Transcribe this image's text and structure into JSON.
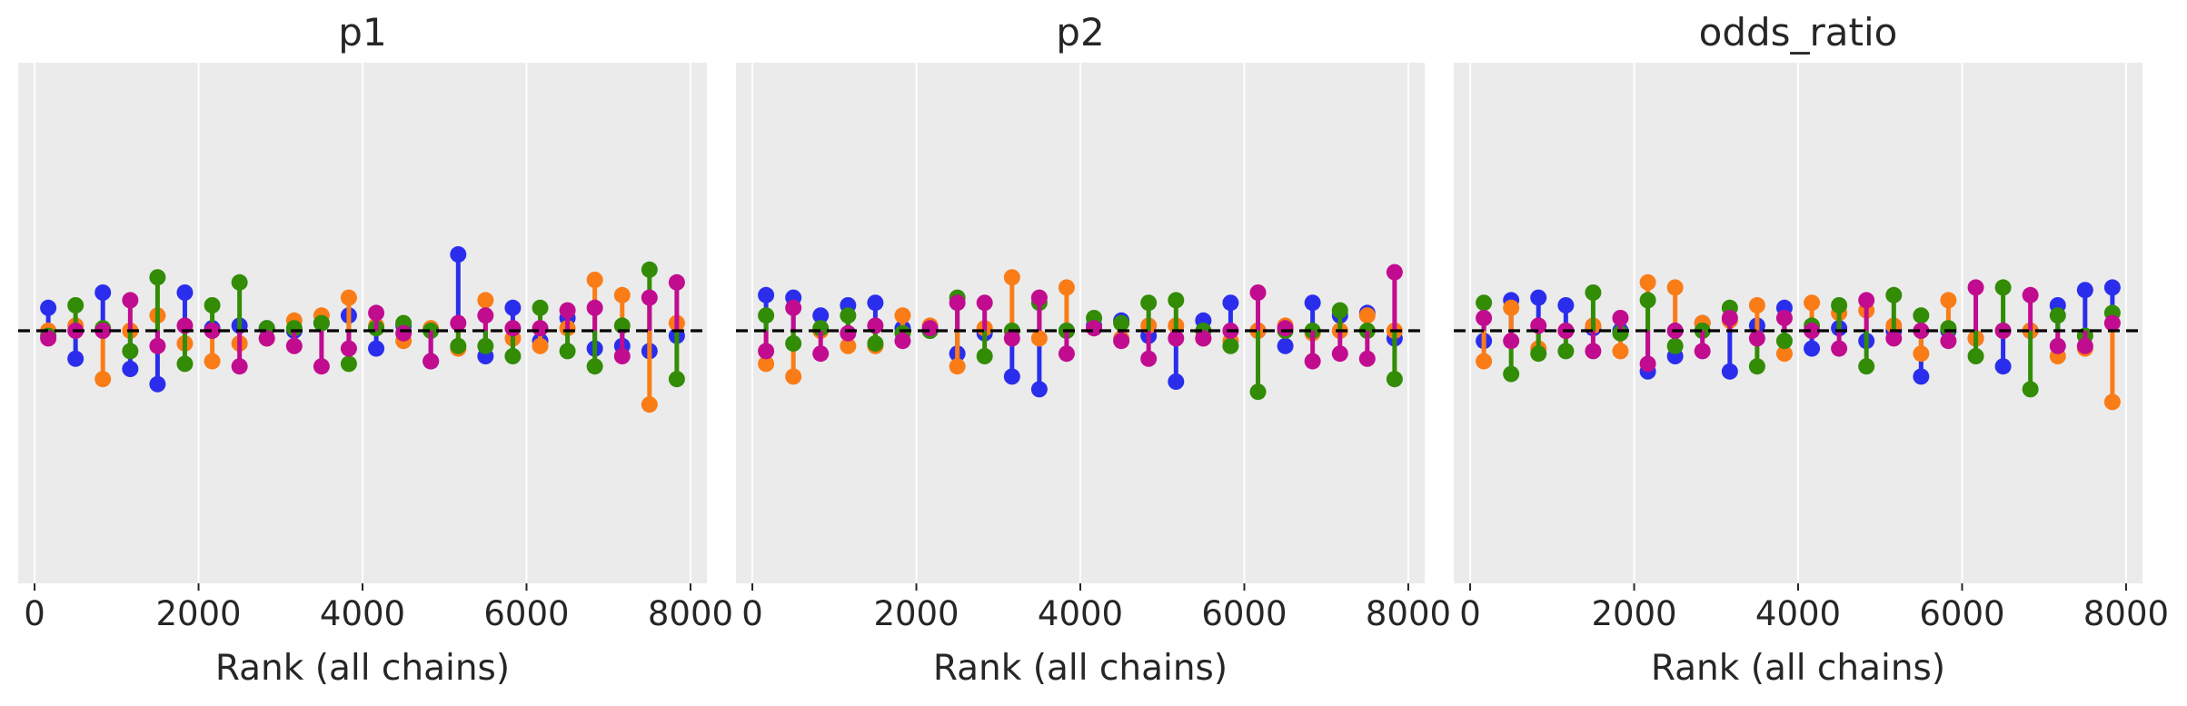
{
  "chart_data": [
    {
      "type": "rank-vlines",
      "title": "p1",
      "xlabel": "Rank (all chains)",
      "ylabel": "",
      "xlim": [
        -200,
        8200
      ],
      "ylim": [
        -1,
        1
      ],
      "xticks": [
        0,
        2000,
        4000,
        6000,
        8000
      ],
      "reference_line": 0,
      "grid": "vertical",
      "x": [
        167,
        500,
        833,
        1167,
        1500,
        1833,
        2167,
        2500,
        2833,
        3167,
        3500,
        3833,
        4167,
        4500,
        4833,
        5167,
        5500,
        5833,
        6167,
        6500,
        6833,
        7167,
        7500,
        7833
      ],
      "series": [
        {
          "color": "#2a2eec",
          "values": [
            0.09,
            -0.11,
            0.15,
            -0.15,
            -0.21,
            0.15,
            0.01,
            0.02,
            0.01,
            0.0,
            0.03,
            0.06,
            -0.07,
            0.02,
            -0.12,
            0.3,
            -0.1,
            0.09,
            -0.04,
            0.05,
            -0.07,
            -0.06,
            -0.08,
            -0.02
          ]
        },
        {
          "color": "#fa7c17",
          "values": [
            0.0,
            0.02,
            -0.19,
            0.0,
            0.06,
            -0.05,
            -0.12,
            -0.05,
            -0.03,
            0.04,
            0.06,
            0.13,
            0.02,
            -0.04,
            0.01,
            -0.07,
            0.12,
            -0.03,
            -0.06,
            0.01,
            0.2,
            0.14,
            -0.29,
            0.03
          ]
        },
        {
          "color": "#328c06",
          "values": [
            -0.02,
            0.1,
            0.01,
            -0.08,
            0.21,
            -0.13,
            0.1,
            0.19,
            0.01,
            0.01,
            0.03,
            -0.13,
            0.01,
            0.03,
            0.0,
            -0.06,
            -0.06,
            -0.1,
            0.09,
            -0.08,
            -0.14,
            0.02,
            0.24,
            -0.19
          ]
        },
        {
          "color": "#c10c90",
          "values": [
            -0.03,
            0.0,
            0.0,
            0.12,
            -0.06,
            0.02,
            0.0,
            -0.14,
            -0.03,
            -0.06,
            -0.14,
            -0.07,
            0.07,
            -0.01,
            -0.12,
            0.03,
            0.06,
            0.01,
            0.01,
            0.08,
            0.09,
            -0.1,
            0.13,
            0.19
          ]
        }
      ]
    },
    {
      "type": "rank-vlines",
      "title": "p2",
      "xlabel": "Rank (all chains)",
      "ylabel": "",
      "xlim": [
        -200,
        8200
      ],
      "ylim": [
        -1,
        1
      ],
      "xticks": [
        0,
        2000,
        4000,
        6000,
        8000
      ],
      "reference_line": 0,
      "grid": "vertical",
      "x": [
        167,
        500,
        833,
        1167,
        1500,
        1833,
        2167,
        2500,
        2833,
        3167,
        3500,
        3833,
        4167,
        4500,
        4833,
        5167,
        5500,
        5833,
        6167,
        6500,
        6833,
        7167,
        7500,
        7833
      ],
      "series": [
        {
          "color": "#2a2eec",
          "values": [
            0.14,
            0.13,
            0.06,
            0.1,
            0.11,
            0.01,
            0.0,
            -0.09,
            -0.01,
            -0.18,
            -0.23,
            0.0,
            0.02,
            0.04,
            -0.02,
            -0.2,
            0.04,
            0.11,
            0.0,
            -0.06,
            0.11,
            0.06,
            0.07,
            -0.03
          ]
        },
        {
          "color": "#fa7c17",
          "values": [
            -0.13,
            -0.18,
            0.0,
            -0.06,
            -0.06,
            0.06,
            0.02,
            -0.14,
            0.01,
            0.21,
            -0.03,
            0.17,
            0.01,
            -0.03,
            0.02,
            0.02,
            -0.03,
            -0.04,
            0.0,
            0.02,
            -0.01,
            0.0,
            0.06,
            0.0
          ]
        },
        {
          "color": "#328c06",
          "values": [
            0.06,
            -0.05,
            0.01,
            0.06,
            -0.05,
            -0.01,
            0.0,
            0.13,
            -0.1,
            0.0,
            0.11,
            0.0,
            0.05,
            0.03,
            0.11,
            0.12,
            0.0,
            -0.06,
            -0.24,
            0.0,
            0.0,
            0.08,
            0.0,
            -0.19
          ]
        },
        {
          "color": "#c10c90",
          "values": [
            -0.08,
            0.09,
            -0.09,
            -0.01,
            0.02,
            -0.04,
            0.01,
            0.11,
            0.11,
            -0.03,
            0.13,
            -0.09,
            0.01,
            -0.04,
            -0.11,
            -0.03,
            -0.03,
            0.0,
            0.15,
            0.01,
            -0.12,
            -0.09,
            -0.11,
            0.23
          ]
        }
      ]
    },
    {
      "type": "rank-vlines",
      "title": "odds_ratio",
      "xlabel": "Rank (all chains)",
      "ylabel": "",
      "xlim": [
        -200,
        8200
      ],
      "ylim": [
        -1,
        1
      ],
      "xticks": [
        0,
        2000,
        4000,
        6000,
        8000
      ],
      "reference_line": 0,
      "grid": "vertical",
      "x": [
        167,
        500,
        833,
        1167,
        1500,
        1833,
        2167,
        2500,
        2833,
        3167,
        3500,
        3833,
        4167,
        4500,
        4833,
        5167,
        5500,
        5833,
        6167,
        6500,
        6833,
        7167,
        7500,
        7833
      ],
      "series": [
        {
          "color": "#2a2eec",
          "values": [
            -0.04,
            0.12,
            0.13,
            0.1,
            0.01,
            0.0,
            -0.16,
            -0.1,
            0.03,
            -0.16,
            0.02,
            0.09,
            -0.07,
            0.01,
            -0.04,
            0.0,
            -0.18,
            0.0,
            -0.03,
            -0.14,
            0.0,
            0.1,
            0.16,
            0.17
          ]
        },
        {
          "color": "#fa7c17",
          "values": [
            -0.12,
            0.09,
            -0.07,
            0.0,
            0.02,
            -0.08,
            0.19,
            0.17,
            0.03,
            0.04,
            0.1,
            -0.09,
            0.11,
            0.07,
            0.08,
            0.02,
            -0.09,
            0.12,
            -0.03,
            0.0,
            0.0,
            -0.1,
            -0.07,
            -0.28
          ]
        },
        {
          "color": "#328c06",
          "values": [
            0.11,
            -0.17,
            -0.09,
            -0.08,
            0.15,
            -0.01,
            0.12,
            -0.06,
            0.0,
            0.09,
            -0.14,
            -0.04,
            0.02,
            0.1,
            -0.14,
            0.14,
            0.06,
            0.01,
            -0.1,
            0.17,
            -0.23,
            0.06,
            -0.02,
            0.07
          ]
        },
        {
          "color": "#c10c90",
          "values": [
            0.05,
            -0.04,
            0.02,
            0.0,
            -0.08,
            0.05,
            -0.13,
            0.0,
            -0.08,
            0.05,
            -0.03,
            0.05,
            0.0,
            -0.07,
            0.12,
            -0.03,
            0.0,
            -0.04,
            0.17,
            0.0,
            0.14,
            -0.06,
            -0.06,
            0.03
          ]
        }
      ]
    }
  ]
}
